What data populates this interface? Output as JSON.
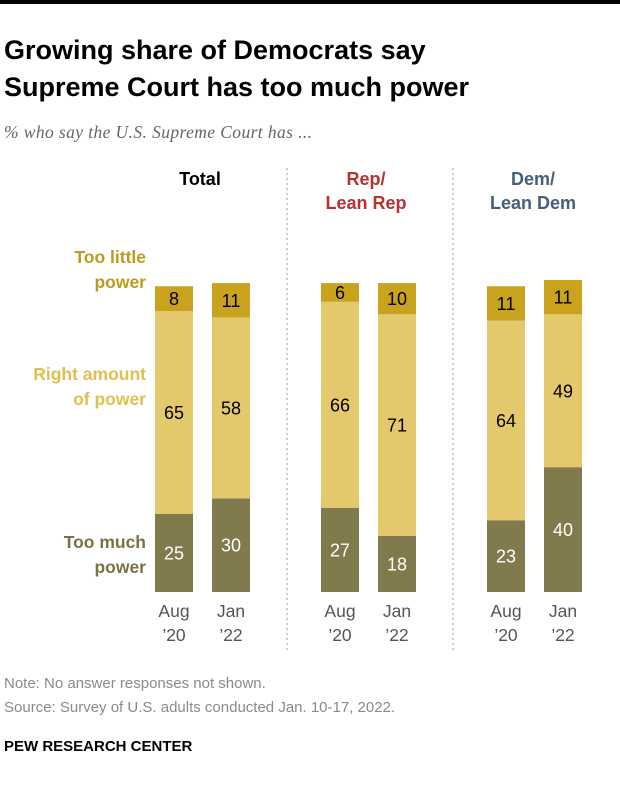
{
  "title": {
    "line1": "Growing share of Democrats say",
    "line2": "Supreme Court has too much power"
  },
  "subtitle": "% who say the U.S. Supreme Court has ...",
  "note": "Note: No answer responses not shown.",
  "source": "Source: Survey of U.S. adults conducted Jan. 10-17, 2022.",
  "brand": "PEW RESEARCH CENTER",
  "colors": {
    "too_little": "#C9A21E",
    "right_amount": "#E3C96B",
    "too_much": "#807A4C",
    "rep": "#B8312F",
    "dem": "#44607A",
    "label_gold": "#BF9A1E",
    "label_light": "#E0BF4E",
    "label_olive": "#7A7243"
  },
  "chart_data": {
    "type": "bar",
    "stacked": true,
    "orientation": "vertical",
    "ylim": [
      0,
      100
    ],
    "grid": false,
    "row_labels": {
      "too_little": [
        "Too little",
        "power"
      ],
      "right_amount": [
        "Right amount",
        "of power"
      ],
      "too_much": [
        "Too much",
        "power"
      ]
    },
    "groups": [
      {
        "name": "Total",
        "title_lines": [
          "Total"
        ],
        "title_color": "#000000",
        "bars": [
          {
            "x_label": [
              "Aug",
              "’20"
            ],
            "too_much": 25,
            "right_amount": 65,
            "too_little": 8
          },
          {
            "x_label": [
              "Jan",
              "’22"
            ],
            "too_much": 30,
            "right_amount": 58,
            "too_little": 11
          }
        ]
      },
      {
        "name": "Rep/Lean Rep",
        "title_lines": [
          "Rep/",
          "Lean Rep"
        ],
        "title_color": "#B8312F",
        "bars": [
          {
            "x_label": [
              "Aug",
              "’20"
            ],
            "too_much": 27,
            "right_amount": 66,
            "too_little": 6
          },
          {
            "x_label": [
              "Jan",
              "’22"
            ],
            "too_much": 18,
            "right_amount": 71,
            "too_little": 10
          }
        ]
      },
      {
        "name": "Dem/Lean Dem",
        "title_lines": [
          "Dem/",
          "Lean Dem"
        ],
        "title_color": "#44607A",
        "bars": [
          {
            "x_label": [
              "Aug",
              "’20"
            ],
            "too_much": 23,
            "right_amount": 64,
            "too_little": 11
          },
          {
            "x_label": [
              "Jan",
              "’22"
            ],
            "too_much": 40,
            "right_amount": 49,
            "too_little": 11
          }
        ]
      }
    ]
  }
}
